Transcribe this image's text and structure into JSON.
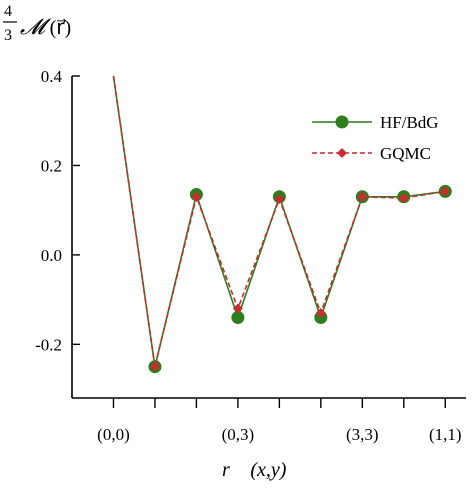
{
  "chart_data": {
    "type": "line",
    "title": "",
    "ylabel": {
      "frac_num": "4",
      "frac_den": "3",
      "symbol": "𝓜",
      "arg": "(r⃗)"
    },
    "xlabel": {
      "vec": "r⃗",
      "args": "(x,y)"
    },
    "x_positions": [
      0,
      1,
      2,
      3,
      4,
      5,
      6,
      7,
      8
    ],
    "x_tick_labels": [
      {
        "x": 0,
        "label": "(0,0)"
      },
      {
        "x": 3,
        "label": "(0,3)"
      },
      {
        "x": 6,
        "label": "(3,3)"
      },
      {
        "x": 8,
        "label": "(1,1)"
      }
    ],
    "xlim": [
      -1,
      8.5
    ],
    "ylim": [
      -0.32,
      0.4
    ],
    "y_ticks": [
      0.4,
      0.2,
      0.0,
      -0.2
    ],
    "y_tick_labels": [
      "0.4",
      "0.2",
      "0.0",
      "-0.2"
    ],
    "legend_position": "top-right",
    "series": [
      {
        "name": "HF/BdG",
        "color": "#2e7d1f",
        "line": "solid",
        "marker": "circle",
        "values": [
          0.4,
          -0.25,
          0.135,
          -0.14,
          0.13,
          -0.14,
          0.13,
          0.13,
          0.142
        ]
      },
      {
        "name": "GQMC",
        "color": "#c62d2d",
        "line": "dashed",
        "marker": "diamond",
        "values": [
          0.4,
          -0.25,
          0.13,
          -0.12,
          0.125,
          -0.13,
          0.13,
          0.127,
          0.142
        ]
      }
    ]
  }
}
